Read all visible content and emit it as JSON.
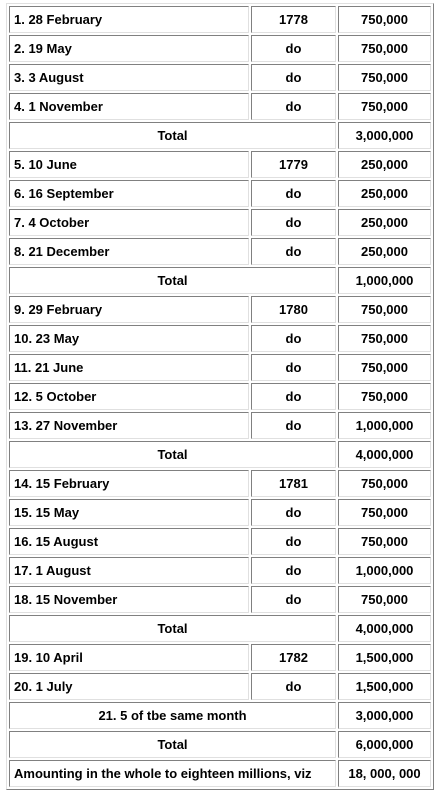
{
  "table": {
    "rows": [
      [
        "1. 28 February",
        "1778",
        "750,000"
      ],
      [
        "2. 19 May",
        "do",
        "750,000"
      ],
      [
        "3. 3 August",
        "do",
        "750,000"
      ],
      [
        "4. 1 November",
        "do",
        "750,000"
      ],
      [
        "Total",
        "3,000,000"
      ],
      [
        "5. 10 June",
        "1779",
        "250,000"
      ],
      [
        "6. 16 September",
        "do",
        "250,000"
      ],
      [
        "7. 4 October",
        "do",
        "250,000"
      ],
      [
        "8. 21 December",
        "do",
        "250,000"
      ],
      [
        "Total",
        "1,000,000"
      ],
      [
        "9. 29 February",
        "1780",
        "750,000"
      ],
      [
        "10. 23 May",
        "do",
        "750,000"
      ],
      [
        "11. 21 June",
        "do",
        "750,000"
      ],
      [
        "12. 5 October",
        "do",
        "750,000"
      ],
      [
        "13. 27 November",
        "do",
        "1,000,000"
      ],
      [
        "Total",
        "4,000,000"
      ],
      [
        "14. 15 February",
        "1781",
        "750,000"
      ],
      [
        "15. 15 May",
        "do",
        "750,000"
      ],
      [
        "16. 15 August",
        "do",
        "750,000"
      ],
      [
        "17. 1 August",
        "do",
        "1,000,000"
      ],
      [
        "18. 15 November",
        "do",
        "750,000"
      ],
      [
        "Total",
        "4,000,000"
      ],
      [
        "19. 10 April",
        "1782",
        "1,500,000"
      ],
      [
        "20. 1 July",
        "do",
        "1,500,000"
      ],
      [
        "21. 5 of tbe same month",
        "3,000,000"
      ],
      [
        "Total",
        "6,000,000"
      ],
      [
        "Amounting in the whole to eighteen millions, viz",
        "18, 000, 000"
      ]
    ]
  }
}
